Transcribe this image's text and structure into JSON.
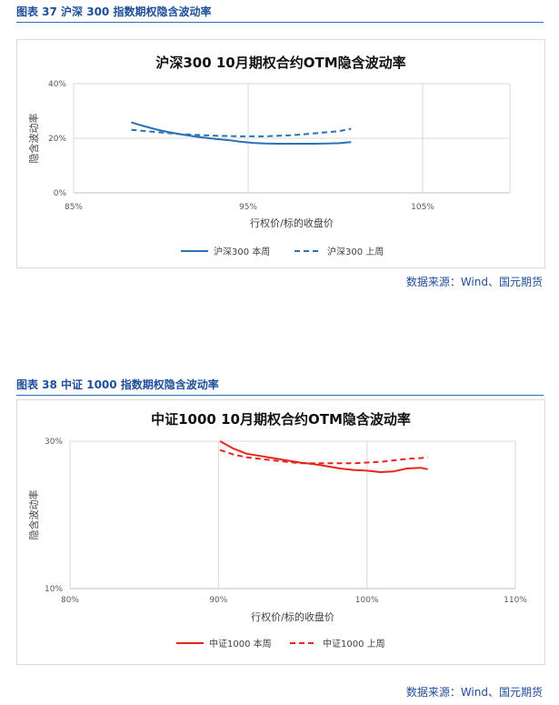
{
  "figure1": {
    "caption": "图表 37 沪深 300 指数期权隐含波动率",
    "source": "数据来源：Wind、国元期货"
  },
  "figure2": {
    "caption": "图表 38 中证 1000 指数期权隐含波动率",
    "source": "数据来源：Wind、国元期货"
  },
  "chart_data": [
    {
      "type": "line",
      "title": "沪深300 10月期权合约OTM隐含波动率",
      "xlabel": "行权价/标的收盘价",
      "ylabel": "隐含波动率",
      "xlim": [
        0.85,
        1.1
      ],
      "ylim": [
        0,
        0.4
      ],
      "x_ticks": [
        "85%",
        "95%",
        "105%"
      ],
      "y_ticks": [
        "0%",
        "20%",
        "40%"
      ],
      "grid": true,
      "legend": "bottom",
      "colors": [
        "#2a72b5",
        "#2a72b5"
      ],
      "series": [
        {
          "name": "沪深300 本周",
          "style": "solid",
          "x": [
            0.883,
            0.89,
            0.897,
            0.904,
            0.911,
            0.918,
            0.925,
            0.932,
            0.939,
            0.946,
            0.953,
            0.96,
            0.967,
            0.974,
            0.981,
            0.988,
            0.995,
            1.002,
            1.009
          ],
          "y": [
            0.258,
            0.245,
            0.233,
            0.223,
            0.215,
            0.208,
            0.202,
            0.197,
            0.193,
            0.187,
            0.183,
            0.181,
            0.18,
            0.18,
            0.18,
            0.18,
            0.181,
            0.182,
            0.186
          ]
        },
        {
          "name": "沪深300 上周",
          "style": "dashed",
          "x": [
            0.883,
            0.89,
            0.897,
            0.904,
            0.911,
            0.918,
            0.925,
            0.932,
            0.939,
            0.946,
            0.953,
            0.96,
            0.967,
            0.974,
            0.981,
            0.988,
            0.995,
            1.002,
            1.009
          ],
          "y": [
            0.231,
            0.227,
            0.223,
            0.219,
            0.215,
            0.213,
            0.211,
            0.209,
            0.208,
            0.207,
            0.207,
            0.207,
            0.209,
            0.211,
            0.214,
            0.218,
            0.222,
            0.226,
            0.235
          ]
        }
      ]
    },
    {
      "type": "line",
      "title": "中证1000 10月期权合约OTM隐含波动率",
      "xlabel": "行权价/标的收盘价",
      "ylabel": "隐含波动率",
      "xlim": [
        0.8,
        1.1
      ],
      "ylim": [
        0.1,
        0.3
      ],
      "x_ticks": [
        "80%",
        "90%",
        "100%",
        "110%"
      ],
      "y_ticks": [
        "10%",
        "30%"
      ],
      "grid": true,
      "legend": "bottom",
      "colors": [
        "#e8251c",
        "#e8251c"
      ],
      "series": [
        {
          "name": "中证1000 本周",
          "style": "solid",
          "x": [
            0.901,
            0.91,
            0.919,
            0.928,
            0.937,
            0.946,
            0.955,
            0.964,
            0.973,
            0.982,
            0.991,
            1.0,
            1.009,
            1.018,
            1.027,
            1.036,
            1.041
          ],
          "y": [
            0.3,
            0.29,
            0.283,
            0.28,
            0.277,
            0.274,
            0.271,
            0.269,
            0.266,
            0.263,
            0.261,
            0.26,
            0.258,
            0.259,
            0.263,
            0.264,
            0.262
          ]
        },
        {
          "name": "中证1000 上周",
          "style": "dashed",
          "x": [
            0.901,
            0.91,
            0.919,
            0.928,
            0.937,
            0.946,
            0.955,
            0.964,
            0.973,
            0.982,
            0.991,
            1.0,
            1.009,
            1.018,
            1.027,
            1.036,
            1.041
          ],
          "y": [
            0.288,
            0.282,
            0.278,
            0.276,
            0.274,
            0.272,
            0.27,
            0.27,
            0.27,
            0.27,
            0.27,
            0.271,
            0.272,
            0.274,
            0.276,
            0.277,
            0.278
          ]
        }
      ]
    }
  ]
}
